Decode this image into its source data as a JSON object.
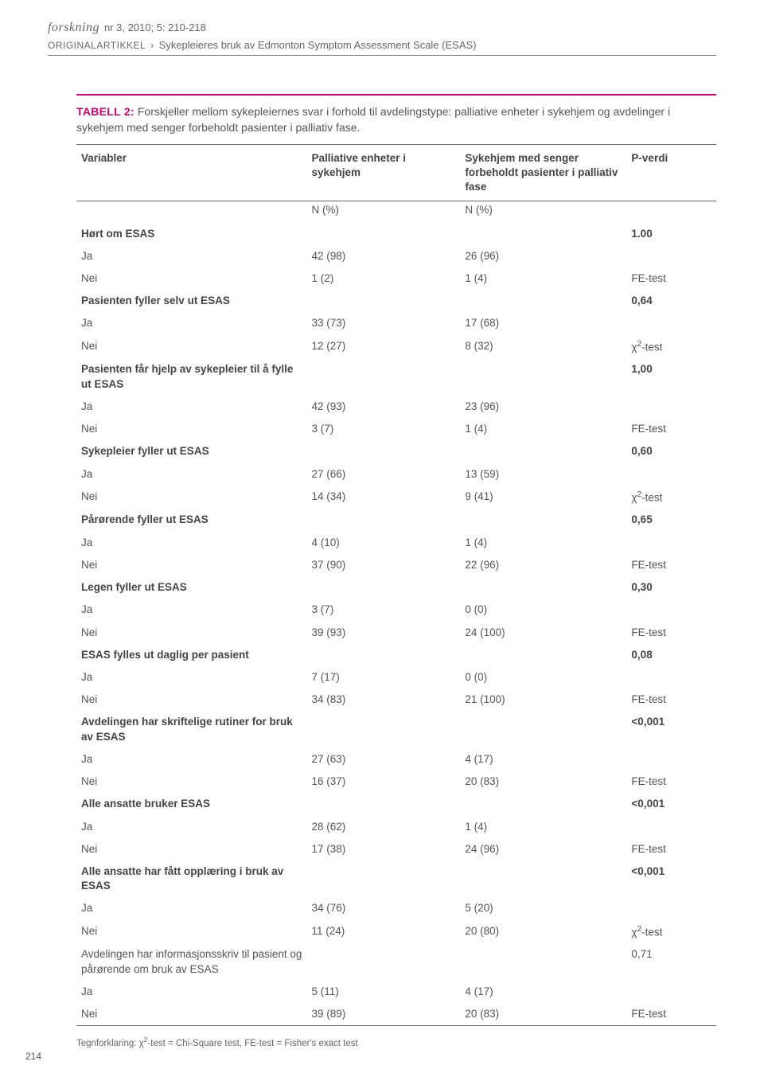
{
  "header": {
    "journal": "forskning",
    "issue": "nr 3, 2010; 5: 210-218",
    "article_type": "ORIGINALARTIKKEL",
    "separator": "›",
    "article_title": "Sykepleieres bruk av Edmonton Symptom Assessment Scale (ESAS)"
  },
  "table": {
    "label": "TABELL 2:",
    "caption": "Forskjeller mellom sykepleiernes svar i forhold til avdelingstype: palliative enheter i sykehjem og avdelinger i sykehjem med senger forbeholdt pasienter i palliativ fase.",
    "columns": {
      "var": "Variabler",
      "a": "Palliative enheter i sykehjem",
      "b": "Sykehjem med senger forbeholdt pasienter i palliativ fase",
      "p": "P-verdi"
    },
    "subhead": {
      "a": "N (%)",
      "b": "N (%)"
    },
    "rows": [
      {
        "type": "section",
        "bold": true,
        "label": "Hørt om ESAS",
        "p": "1.00"
      },
      {
        "type": "data",
        "label": "Ja",
        "a": "42 (98)",
        "b": "26 (96)",
        "p": ""
      },
      {
        "type": "data",
        "label": "Nei",
        "a": "1  (2)",
        "b": "1  (4)",
        "p": "FE-test"
      },
      {
        "type": "section",
        "bold": true,
        "label": "Pasienten fyller selv ut ESAS",
        "p": "0,64"
      },
      {
        "type": "data",
        "label": "Ja",
        "a": "33 (73)",
        "b": "17 (68)",
        "p": ""
      },
      {
        "type": "data",
        "label": "Nei",
        "a": "12 (27)",
        "b": "8  (32)",
        "p": "χ2-test"
      },
      {
        "type": "section",
        "bold": true,
        "label": "Pasienten får hjelp av sykepleier til å fylle ut ESAS",
        "p": "1,00"
      },
      {
        "type": "data",
        "label": "Ja",
        "a": "42 (93)",
        "b": "23 (96)",
        "p": ""
      },
      {
        "type": "data",
        "label": "Nei",
        "a": "3  (7)",
        "b": "1  (4)",
        "p": "FE-test"
      },
      {
        "type": "section",
        "bold": true,
        "label": "Sykepleier fyller ut ESAS",
        "p": "0,60"
      },
      {
        "type": "data",
        "label": "Ja",
        "a": "27 (66)",
        "b": "13 (59)",
        "p": ""
      },
      {
        "type": "data",
        "label": "Nei",
        "a": "14 (34)",
        "b": "9  (41)",
        "p": "χ2-test"
      },
      {
        "type": "section",
        "bold": true,
        "label": "Pårørende fyller ut ESAS",
        "p": "0,65"
      },
      {
        "type": "data",
        "label": "Ja",
        "a": "4  (10)",
        "b": "1  (4)",
        "p": ""
      },
      {
        "type": "data",
        "label": "Nei",
        "a": "37 (90)",
        "b": "22 (96)",
        "p": "FE-test"
      },
      {
        "type": "section",
        "bold": true,
        "label": "Legen fyller ut ESAS",
        "p": "0,30"
      },
      {
        "type": "data",
        "label": "Ja",
        "a": "3  (7)",
        "b": "0  (0)",
        "p": ""
      },
      {
        "type": "data",
        "label": "Nei",
        "a": "39 (93)",
        "b": "24 (100)",
        "p": "FE-test"
      },
      {
        "type": "section",
        "bold": true,
        "label": "ESAS fylles ut daglig per pasient",
        "p": "0,08"
      },
      {
        "type": "data",
        "label": "Ja",
        "a": "7  (17)",
        "b": "0  (0)",
        "p": ""
      },
      {
        "type": "data",
        "label": "Nei",
        "a": "34 (83)",
        "b": "21 (100)",
        "p": "FE-test"
      },
      {
        "type": "section",
        "bold": true,
        "label": "Avdelingen har skriftelige rutiner for bruk av ESAS",
        "p": "<0,001"
      },
      {
        "type": "data",
        "label": "Ja",
        "a": "27 (63)",
        "b": "4  (17)",
        "p": ""
      },
      {
        "type": "data",
        "label": "Nei",
        "a": "16 (37)",
        "b": "20 (83)",
        "p": "FE-test"
      },
      {
        "type": "section",
        "bold": true,
        "label": "Alle ansatte bruker ESAS",
        "p": "<0,001"
      },
      {
        "type": "data",
        "label": "Ja",
        "a": "28 (62)",
        "b": "1  (4)",
        "p": ""
      },
      {
        "type": "data",
        "label": "Nei",
        "a": "17 (38)",
        "b": "24 (96)",
        "p": "FE-test"
      },
      {
        "type": "section",
        "bold": true,
        "label": "Alle ansatte har fått opplæring i bruk av ESAS",
        "p": "<0,001"
      },
      {
        "type": "data",
        "label": "Ja",
        "a": "34 (76)",
        "b": "5   (20)",
        "p": ""
      },
      {
        "type": "data",
        "label": "Nei",
        "a": "11 (24)",
        "b": "20 (80)",
        "p": "χ2-test"
      },
      {
        "type": "section",
        "bold": false,
        "label": "Avdelingen har informasjonsskriv til pasient og pårørende om bruk av ESAS",
        "p": "0,71"
      },
      {
        "type": "data",
        "label": "Ja",
        "a": "5  (11)",
        "b": "4   (17)",
        "p": ""
      },
      {
        "type": "data",
        "label": "Nei",
        "a": "39 (89)",
        "b": "20 (83)",
        "p": "FE-test"
      }
    ]
  },
  "footnote": "Tegnforklaring: χ2-test = Chi-Square test, FE-test = Fisher's exact test",
  "page_number": "214",
  "colors": {
    "accent": "#d6006c",
    "text": "#555555",
    "rule": "#666666"
  }
}
